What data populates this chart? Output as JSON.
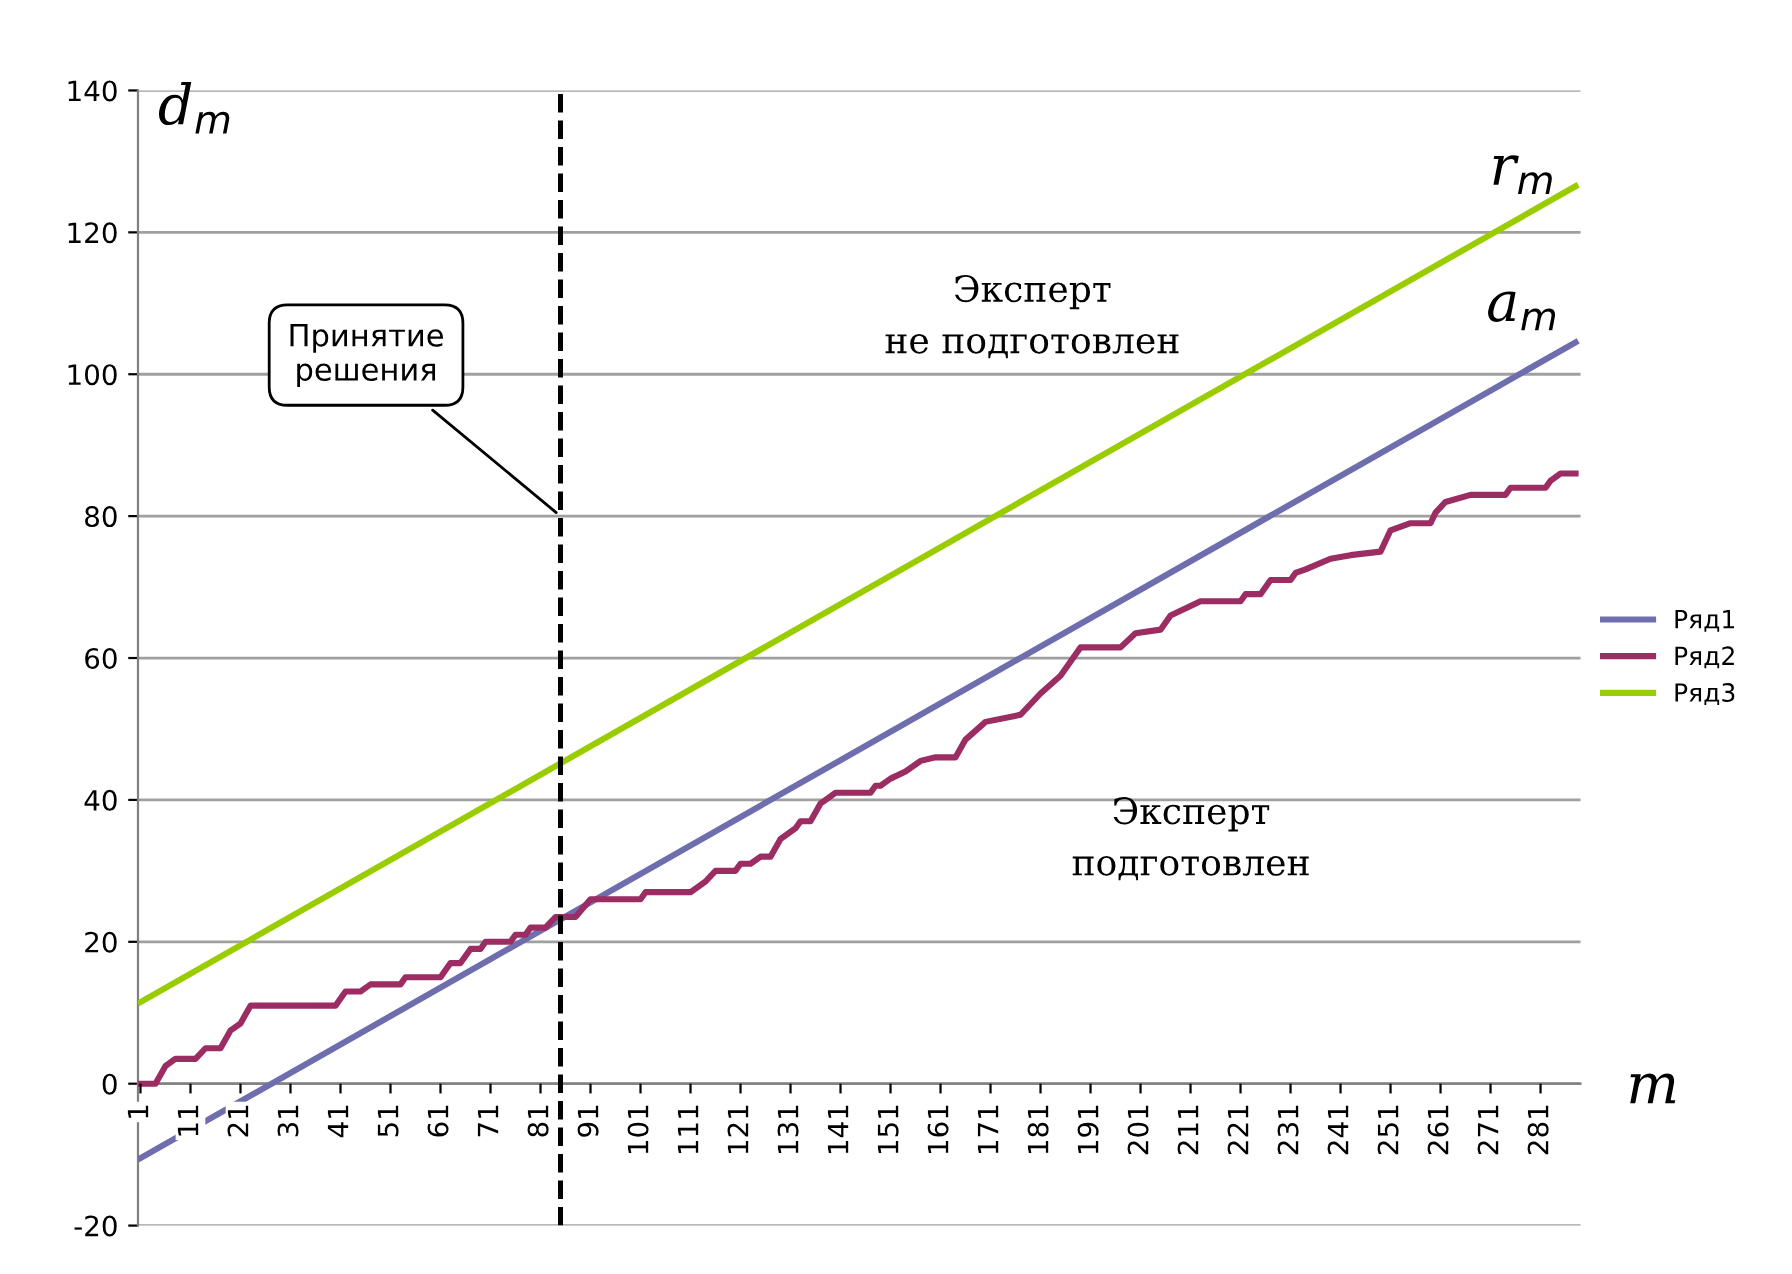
{
  "chart_data": {
    "type": "line",
    "xlabel": "m",
    "ylabel": "d$_{m}$",
    "xlim": [
      0.5,
      289
    ],
    "xticks": [
      1,
      11,
      21,
      31,
      41,
      51,
      61,
      71,
      81,
      91,
      101,
      111,
      121,
      131,
      141,
      151,
      161,
      171,
      181,
      191,
      201,
      211,
      221,
      231,
      241,
      251,
      261,
      271,
      281
    ],
    "ylim": [
      -20,
      140
    ],
    "yticks": [
      -20,
      0,
      20,
      40,
      60,
      80,
      100,
      120,
      140
    ],
    "grid": "y",
    "legend": "right",
    "line_style": "solid",
    "marker": "none",
    "series": [
      {
        "name": "Ряд1",
        "color": "#6e6eae",
        "x": [
          1,
          288
        ],
        "values": [
          -10.5,
          104.5
        ]
      },
      {
        "name": "Ряд2",
        "color": "#9b2d62",
        "x": [
          1,
          4,
          6,
          8,
          12,
          14,
          17,
          19,
          21,
          23,
          40,
          42,
          45,
          47,
          53,
          54,
          61,
          63,
          65,
          67,
          69,
          70,
          75,
          76,
          78,
          79,
          82,
          84,
          88,
          91,
          101,
          102,
          111,
          114,
          116,
          120,
          121,
          123,
          125,
          127,
          129,
          132,
          133,
          135,
          137,
          138,
          140,
          147,
          148,
          149,
          151,
          154,
          157,
          160,
          164,
          166,
          170,
          177,
          181,
          185,
          188,
          189,
          197,
          200,
          205,
          207,
          213,
          221,
          222,
          225,
          227,
          231,
          232,
          234,
          239,
          243,
          249,
          251,
          255,
          259,
          260,
          262,
          267,
          274,
          275,
          282,
          283,
          285,
          288
        ],
        "values": [
          0,
          0,
          2.5,
          3.5,
          3.5,
          5,
          5,
          7.5,
          8.5,
          11,
          11,
          13,
          13,
          14,
          14,
          15,
          15,
          17,
          17,
          19,
          19,
          20,
          20,
          21,
          21,
          22,
          22,
          23.5,
          23.5,
          26,
          26,
          27,
          27,
          28.5,
          30,
          30,
          31,
          31,
          32,
          32,
          34.5,
          36,
          37,
          37,
          39.5,
          40,
          41,
          41,
          42,
          42,
          43,
          44,
          45.5,
          46,
          46,
          48.5,
          51,
          52,
          55,
          57.5,
          60.5,
          61.5,
          61.5,
          63.5,
          64,
          66,
          68,
          68,
          69,
          69,
          71,
          71,
          72,
          72.5,
          74,
          74.5,
          75,
          78,
          79,
          79,
          80.5,
          82,
          83,
          83,
          84,
          84,
          85,
          86,
          86
        ]
      },
      {
        "name": "Ряд3",
        "color": "#9acd00",
        "x": [
          1,
          288
        ],
        "values": [
          11.5,
          126.5
        ]
      }
    ],
    "ref_lines": [
      {
        "axis": "x",
        "value": 85,
        "color": "#000000",
        "line_style": "dashed"
      }
    ],
    "annotations": [
      {
        "text": "Принятие решения",
        "x": 85,
        "y": 80
      },
      "r$_{m}$",
      "a$_{m}$",
      "Эксперт\nне подготовлен",
      "Эксперт\nподготовлен"
    ]
  }
}
